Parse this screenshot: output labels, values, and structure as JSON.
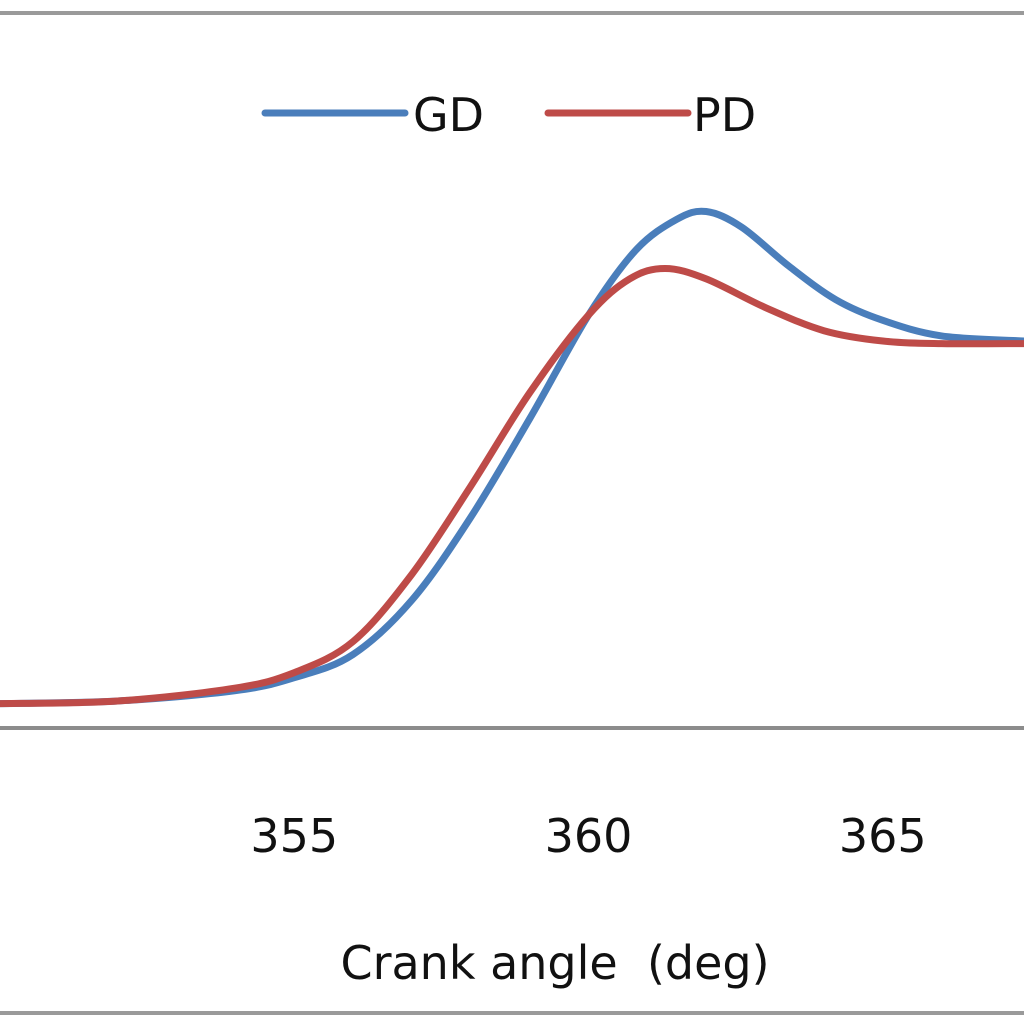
{
  "chart_data": {
    "type": "line",
    "title": "",
    "xlabel": "Crank angle  (deg)",
    "ylabel": "",
    "xlim": [
      350,
      367.4
    ],
    "ylim": [
      0,
      1
    ],
    "x_ticks": [
      355,
      360,
      365
    ],
    "grid": false,
    "legend_position": "top",
    "series": [
      {
        "name": "GD",
        "color": "#4a7ebb",
        "points": [
          [
            350.0,
            0.02
          ],
          [
            352.0,
            0.025
          ],
          [
            354.0,
            0.045
          ],
          [
            355.0,
            0.07
          ],
          [
            356.0,
            0.115
          ],
          [
            357.0,
            0.22
          ],
          [
            358.0,
            0.38
          ],
          [
            359.0,
            0.57
          ],
          [
            360.0,
            0.77
          ],
          [
            360.8,
            0.895
          ],
          [
            361.5,
            0.955
          ],
          [
            362.0,
            0.97
          ],
          [
            362.6,
            0.94
          ],
          [
            363.4,
            0.865
          ],
          [
            364.2,
            0.8
          ],
          [
            365.0,
            0.76
          ],
          [
            366.0,
            0.73
          ],
          [
            367.4,
            0.72
          ]
        ]
      },
      {
        "name": "PD",
        "color": "#be4b48",
        "points": [
          [
            350.0,
            0.02
          ],
          [
            352.0,
            0.025
          ],
          [
            354.0,
            0.05
          ],
          [
            355.0,
            0.08
          ],
          [
            356.0,
            0.14
          ],
          [
            357.0,
            0.27
          ],
          [
            358.0,
            0.44
          ],
          [
            359.0,
            0.62
          ],
          [
            360.0,
            0.77
          ],
          [
            360.7,
            0.84
          ],
          [
            361.3,
            0.86
          ],
          [
            362.0,
            0.84
          ],
          [
            363.0,
            0.785
          ],
          [
            364.0,
            0.74
          ],
          [
            365.0,
            0.72
          ],
          [
            366.0,
            0.715
          ],
          [
            367.4,
            0.715
          ]
        ]
      }
    ]
  },
  "colors": {
    "axis": "#8c8c8c",
    "frame": "#9a9a9a"
  }
}
